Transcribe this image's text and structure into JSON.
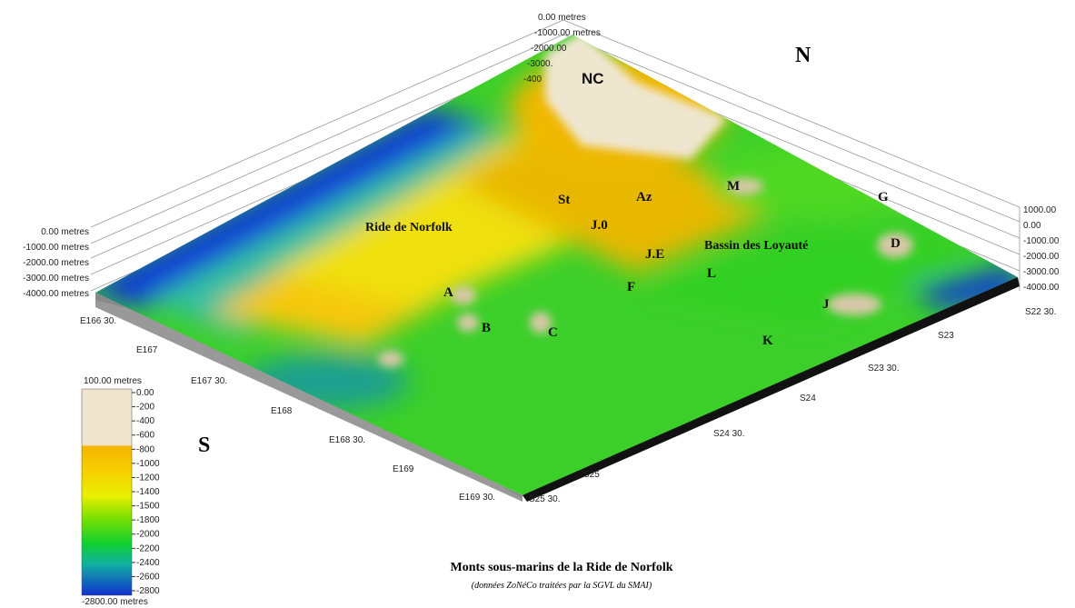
{
  "north": "N",
  "south": "S",
  "features": [
    "NC",
    "St",
    "Az",
    "M",
    "G",
    "J.0",
    "J.E",
    "D",
    "L",
    "A",
    "B",
    "C",
    "F",
    "J",
    "K"
  ],
  "regions": [
    "Ride de Norfolk",
    "Bassin des Loyauté"
  ],
  "left_depth_axis": [
    "0.00 metres",
    "-1000.00 metres",
    "-2000.00 metres",
    "-3000.00 metres",
    "-4000.00 metres"
  ],
  "top_depth_axis": [
    "0.00 metres",
    "-1000.00 metres",
    "-2000.00",
    "-3000.",
    "-400"
  ],
  "right_depth_axis": [
    "1000.00",
    "0.00",
    "-1000.00",
    "-2000.00",
    "-3000.00",
    "-4000.00"
  ],
  "longitudes": [
    "E166 30.",
    "E167",
    "E167 30.",
    "E168",
    "E168 30.",
    "E169",
    "E169 30."
  ],
  "latitudes": [
    "S22 30.",
    "S23",
    "S23 30.",
    "S24",
    "S24 30.",
    "S25",
    "S25 30."
  ],
  "legend": {
    "top": "100.00 metres",
    "ticks": [
      "0.00",
      "-200",
      "-400",
      "-600",
      "-800",
      "-1000",
      "-1200",
      "-1400",
      "-1500",
      "-1800",
      "-2000",
      "-2200",
      "-2400",
      "-2600",
      "-2800"
    ],
    "bottom": "-2800.00 metres"
  },
  "title": "Monts sous-marins de la Ride de Norfolk",
  "subtitle": "(données ZoNéCo traitées par la SGVL du SMAI)"
}
